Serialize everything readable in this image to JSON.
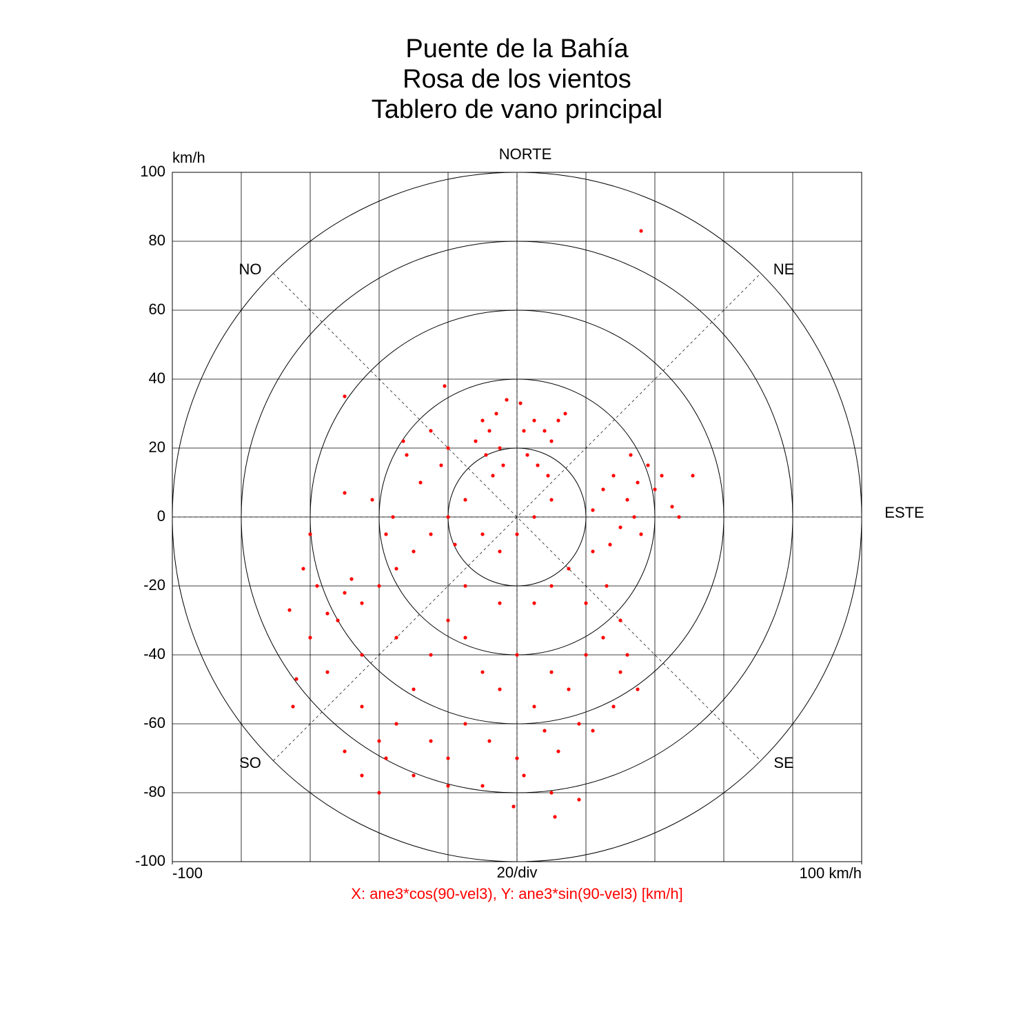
{
  "chart_data": {
    "type": "scatter",
    "title": [
      "Puente de la Bahía",
      "Rosa de los vientos",
      "Tablero de vano principal"
    ],
    "ylabel": "km/h",
    "xlabel": "X: ane3*cos(90-vel3),  Y: ane3*sin(90-vel3) [km/h]",
    "scale_label": "20/div",
    "direction_labels": [
      "NORTE",
      "NE",
      "ESTE",
      "SE",
      "SO",
      "NO"
    ],
    "xlim": [
      -100,
      100
    ],
    "ylim": [
      -100,
      100
    ],
    "xticks": [
      -100,
      {
        "value": 100,
        "label": "100 km/h"
      }
    ],
    "yticks": [
      -100,
      -80,
      -60,
      -40,
      -20,
      0,
      20,
      40,
      60,
      80,
      100
    ],
    "grid": true,
    "color": "#ff0000",
    "x": [
      -8,
      -10,
      -6,
      -12,
      -5,
      -9,
      -4,
      -7,
      2,
      5,
      8,
      10,
      12,
      3,
      6,
      9,
      1,
      -3,
      14,
      25,
      28,
      32,
      35,
      38,
      30,
      27,
      34,
      40,
      42,
      45,
      36,
      22,
      33,
      47,
      51,
      -15,
      -20,
      -25,
      -30,
      -35,
      -28,
      -22,
      -32,
      -18,
      -10,
      -5,
      0,
      5,
      10,
      -40,
      -45,
      -50,
      -55,
      -60,
      -58,
      -48,
      -38,
      -42,
      -62,
      -66,
      -52,
      -36,
      -25,
      -20,
      -33,
      -50,
      -60,
      -20,
      -25,
      -15,
      -10,
      -5,
      0,
      5,
      10,
      15,
      20,
      25,
      30,
      28,
      32,
      -30,
      -35,
      -25,
      -20,
      -15,
      -8,
      0,
      8,
      12,
      18,
      22,
      -40,
      -45,
      -38,
      -30,
      -45,
      -50,
      2,
      -10,
      -20,
      10,
      18,
      11,
      -40,
      -65,
      -55,
      -35,
      -45,
      10,
      15,
      20,
      5,
      -5,
      -15,
      26,
      22,
      30,
      35,
      -64,
      36,
      -50,
      -21,
      -1
    ],
    "y": [
      25,
      28,
      30,
      22,
      20,
      18,
      15,
      12,
      25,
      28,
      25,
      22,
      28,
      18,
      15,
      12,
      33,
      34,
      30,
      8,
      12,
      5,
      10,
      15,
      -3,
      -8,
      0,
      8,
      12,
      3,
      -5,
      2,
      18,
      0,
      12,
      5,
      0,
      -5,
      -10,
      -15,
      10,
      15,
      18,
      -8,
      -5,
      -10,
      -5,
      0,
      5,
      -20,
      -25,
      -22,
      -28,
      -35,
      -20,
      -18,
      -5,
      5,
      -15,
      -27,
      -30,
      0,
      25,
      20,
      22,
      7,
      -5,
      -30,
      -40,
      -35,
      -45,
      -50,
      -40,
      -55,
      -45,
      -50,
      -40,
      -35,
      -45,
      -55,
      -40,
      -50,
      -60,
      -65,
      -70,
      -60,
      -65,
      -70,
      -62,
      -68,
      -60,
      -62,
      -65,
      -55,
      -70,
      -75,
      -75,
      -68,
      -75,
      -78,
      -78,
      -80,
      -82,
      -87,
      -80,
      -55,
      -45,
      -35,
      -40,
      -20,
      -15,
      -25,
      -25,
      -25,
      -20,
      -20,
      -10,
      -30,
      -50,
      -47,
      83,
      35,
      38,
      -84
    ]
  }
}
